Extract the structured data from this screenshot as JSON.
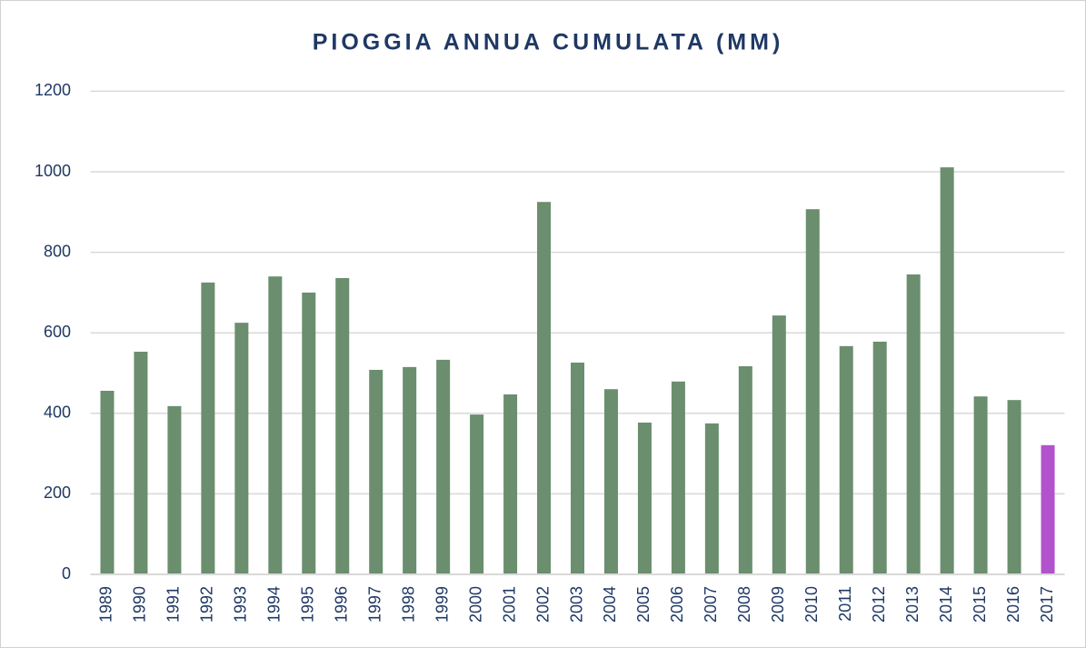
{
  "chart_data": {
    "type": "bar",
    "title": "PIOGGIA ANNUA CUMULATA (MM)",
    "categories": [
      "1989",
      "1990",
      "1991",
      "1992",
      "1993",
      "1994",
      "1995",
      "1996",
      "1997",
      "1998",
      "1999",
      "2000",
      "2001",
      "2002",
      "2003",
      "2004",
      "2005",
      "2006",
      "2007",
      "2008",
      "2009",
      "2010",
      "2011",
      "2012",
      "2013",
      "2014",
      "2015",
      "2016",
      "2017"
    ],
    "values": [
      456,
      553,
      418,
      725,
      625,
      740,
      700,
      736,
      508,
      515,
      533,
      397,
      447,
      925,
      526,
      460,
      377,
      479,
      375,
      517,
      643,
      907,
      567,
      578,
      745,
      1011,
      442,
      433,
      321
    ],
    "colors": [
      "#6a8e6e",
      "#6a8e6e",
      "#6a8e6e",
      "#6a8e6e",
      "#6a8e6e",
      "#6a8e6e",
      "#6a8e6e",
      "#6a8e6e",
      "#6a8e6e",
      "#6a8e6e",
      "#6a8e6e",
      "#6a8e6e",
      "#6a8e6e",
      "#6a8e6e",
      "#6a8e6e",
      "#6a8e6e",
      "#6a8e6e",
      "#6a8e6e",
      "#6a8e6e",
      "#6a8e6e",
      "#6a8e6e",
      "#6a8e6e",
      "#6a8e6e",
      "#6a8e6e",
      "#6a8e6e",
      "#6a8e6e",
      "#6a8e6e",
      "#6a8e6e",
      "#b252cc"
    ],
    "ylim": [
      0,
      1200
    ],
    "yticks": [
      0,
      200,
      400,
      600,
      800,
      1000,
      1200
    ],
    "grid": true
  }
}
